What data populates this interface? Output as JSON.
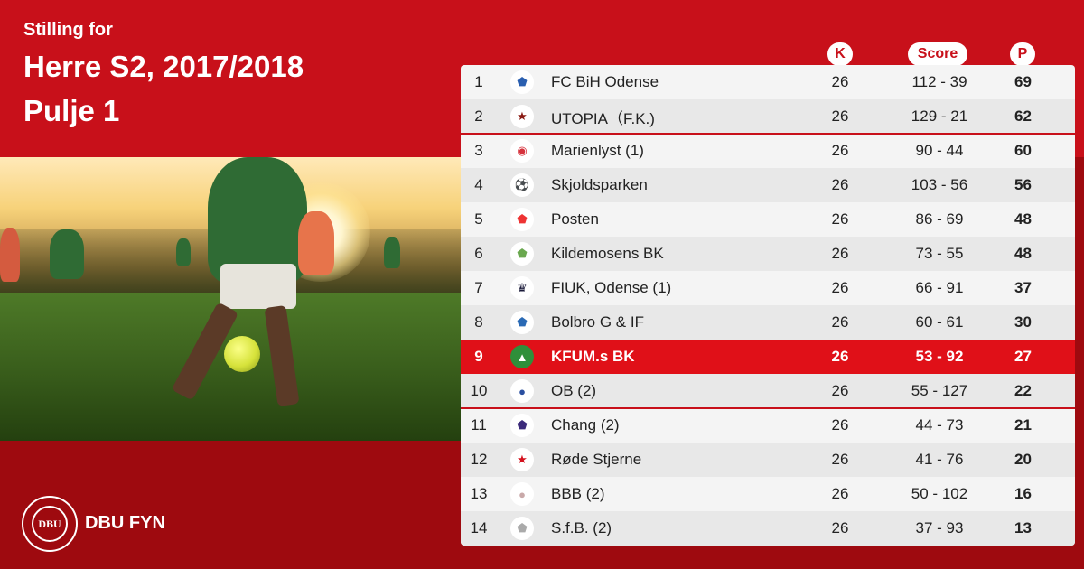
{
  "header": {
    "pre_title": "Stilling for",
    "title": "Herre S2, 2017/2018",
    "subtitle": "Pulje 1"
  },
  "columns": {
    "k": "K",
    "score": "Score",
    "points": "P"
  },
  "footer": {
    "brand": "DBU FYN",
    "logo_text": "DBU"
  },
  "colors": {
    "primary_red": "#c8101a",
    "highlight_red": "#e01018",
    "dark_red": "#9e0a0f"
  },
  "standings": [
    {
      "pos": "1",
      "team": "FC BiH Odense",
      "k": "26",
      "score": "112 - 39",
      "points": "69",
      "crest": "shield-icon"
    },
    {
      "pos": "2",
      "team": "UTOPIA（F.K.)",
      "k": "26",
      "score": "129 - 21",
      "points": "62",
      "crest": "star-icon"
    },
    {
      "pos": "3",
      "team": "Marienlyst (1)",
      "k": "26",
      "score": "90 - 44",
      "points": "60",
      "crest": "badge-icon"
    },
    {
      "pos": "4",
      "team": "Skjoldsparken",
      "k": "26",
      "score": "103 - 56",
      "points": "56",
      "crest": "ball-icon"
    },
    {
      "pos": "5",
      "team": "Posten",
      "k": "26",
      "score": "86 - 69",
      "points": "48",
      "crest": "shield-icon"
    },
    {
      "pos": "6",
      "team": "Kildemosens BK",
      "k": "26",
      "score": "73 - 55",
      "points": "48",
      "crest": "shield-icon"
    },
    {
      "pos": "7",
      "team": "FIUK, Odense (1)",
      "k": "26",
      "score": "66 - 91",
      "points": "37",
      "crest": "crown-icon"
    },
    {
      "pos": "8",
      "team": "Bolbro G & IF",
      "k": "26",
      "score": "60 - 61",
      "points": "30",
      "crest": "shield-icon"
    },
    {
      "pos": "9",
      "team": "KFUM.s BK",
      "k": "26",
      "score": "53 - 92",
      "points": "27",
      "crest": "triangle-icon",
      "highlight": true
    },
    {
      "pos": "10",
      "team": "OB (2)",
      "k": "26",
      "score": "55 - 127",
      "points": "22",
      "crest": "circle-icon"
    },
    {
      "pos": "11",
      "team": "Chang  (2)",
      "k": "26",
      "score": "44 - 73",
      "points": "21",
      "crest": "shield-icon"
    },
    {
      "pos": "12",
      "team": "Røde Stjerne",
      "k": "26",
      "score": "41 - 76",
      "points": "20",
      "crest": "star-icon"
    },
    {
      "pos": "13",
      "team": "BBB (2)",
      "k": "26",
      "score": "50 - 102",
      "points": "16",
      "crest": "circle-icon"
    },
    {
      "pos": "14",
      "team": "S.f.B. (2)",
      "k": "26",
      "score": "37 - 93",
      "points": "13",
      "crest": "shield-icon"
    }
  ]
}
